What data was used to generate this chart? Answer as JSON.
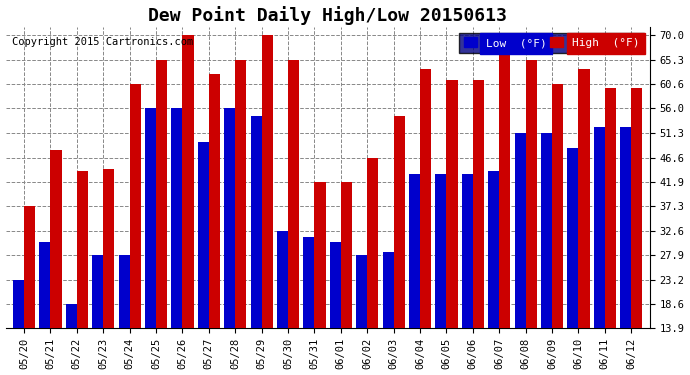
{
  "title": "Dew Point Daily High/Low 20150613",
  "copyright": "Copyright 2015 Cartronics.com",
  "dates": [
    "05/20",
    "05/21",
    "05/22",
    "05/23",
    "05/24",
    "05/25",
    "05/26",
    "05/27",
    "05/28",
    "05/29",
    "05/30",
    "05/31",
    "06/01",
    "06/02",
    "06/03",
    "06/04",
    "06/05",
    "06/06",
    "06/07",
    "06/08",
    "06/09",
    "06/10",
    "06/11",
    "06/12"
  ],
  "low_values": [
    23.2,
    30.5,
    18.6,
    27.9,
    27.9,
    56.0,
    56.0,
    49.5,
    56.0,
    54.5,
    32.6,
    31.5,
    30.5,
    27.9,
    28.5,
    43.5,
    43.5,
    43.5,
    44.0,
    51.3,
    51.3,
    48.5,
    52.5,
    52.5
  ],
  "high_values": [
    37.3,
    48.0,
    44.0,
    44.5,
    60.6,
    65.3,
    70.0,
    62.6,
    65.3,
    70.0,
    65.3,
    41.9,
    41.9,
    46.6,
    54.5,
    63.5,
    61.5,
    61.5,
    70.0,
    65.3,
    60.6,
    63.5,
    60.0,
    60.0
  ],
  "low_color": "#0000cc",
  "high_color": "#cc0000",
  "background_color": "#ffffff",
  "plot_bg_color": "#ffffff",
  "grid_color": "#888888",
  "yticks": [
    13.9,
    18.6,
    23.2,
    27.9,
    32.6,
    37.3,
    41.9,
    46.6,
    51.3,
    56.0,
    60.6,
    65.3,
    70.0
  ],
  "ymin": 13.9,
  "ymax": 71.5,
  "bar_width": 0.42,
  "legend_low_label": "Low  (°F)",
  "legend_high_label": "High  (°F)",
  "title_fontsize": 13,
  "copyright_fontsize": 7.5,
  "tick_fontsize": 7.5,
  "legend_fontsize": 8
}
